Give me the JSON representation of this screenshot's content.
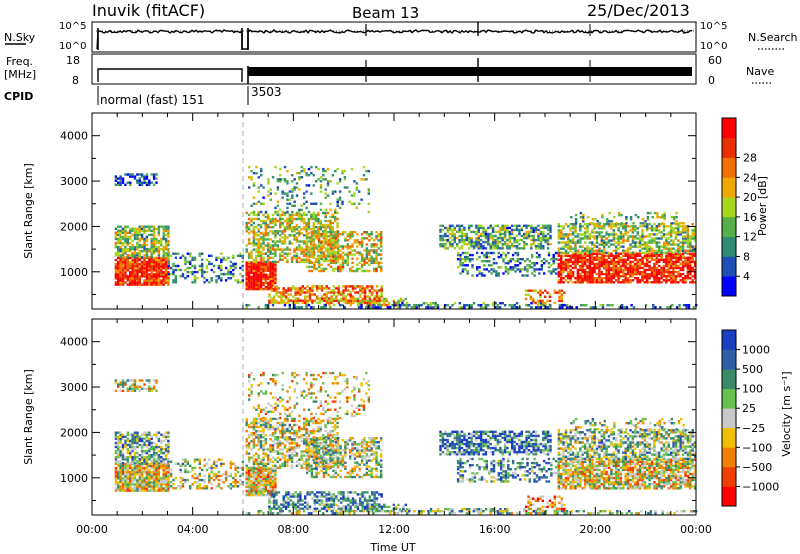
{
  "header": {
    "station": "Inuvik (fitACF)",
    "beam": "Beam 13",
    "date": "25/Dec/2013"
  },
  "panels": {
    "nsky": {
      "label": "N.Sky",
      "ticks": [
        "10^5",
        "10^0"
      ],
      "right_label": "N.Search",
      "right_ticks": [
        "10^5",
        "10^0"
      ]
    },
    "freq": {
      "label_line1": "Freq.",
      "label_line2": "[MHz]",
      "ticks": [
        "18",
        "8"
      ],
      "right_label": "Nave",
      "right_ticks": [
        "60",
        "0"
      ]
    },
    "cpid": {
      "label": "CPID",
      "segments": [
        "normal (fast) 151",
        "3503"
      ]
    }
  },
  "chart_data": [
    {
      "type": "heatmap",
      "name": "power",
      "ylabel": "Slant Range [km]",
      "ylim": [
        180,
        4500
      ],
      "yticks": [
        "1000",
        "2000",
        "3000",
        "4000"
      ],
      "xlabel": "Time UT",
      "xlim_hours": [
        0,
        24
      ],
      "colorbar": {
        "label": "Power [dB]",
        "ticks": [
          "4",
          "8",
          "12",
          "16",
          "20",
          "24",
          "28"
        ],
        "colors": [
          "#0000ff",
          "#1f4fb5",
          "#2e8b74",
          "#55b04a",
          "#a8d61c",
          "#f0a800",
          "#f07000",
          "#e83000",
          "#ff0000"
        ]
      }
    },
    {
      "type": "heatmap",
      "name": "velocity",
      "ylabel": "Slant Range [km]",
      "ylim": [
        180,
        4500
      ],
      "yticks": [
        "1000",
        "2000",
        "3000",
        "4000"
      ],
      "xlabel": "Time UT",
      "xticks": [
        "00:00",
        "04:00",
        "08:00",
        "12:00",
        "16:00",
        "20:00",
        "00:00"
      ],
      "colorbar": {
        "label": "Velocity [m s⁻¹]",
        "ticks": [
          "1000",
          "500",
          "100",
          "25",
          "−25",
          "−100",
          "−500",
          "−1000"
        ],
        "colors": [
          "#1a3fc0",
          "#2f5fa8",
          "#3a8a6a",
          "#66c050",
          "#c8c8c8",
          "#f0c000",
          "#f08000",
          "#f04000",
          "#ff0000"
        ]
      }
    }
  ],
  "xaxis": {
    "label": "Time UT",
    "ticks": [
      "00:00",
      "04:00",
      "08:00",
      "12:00",
      "16:00",
      "20:00",
      "00:00"
    ]
  }
}
